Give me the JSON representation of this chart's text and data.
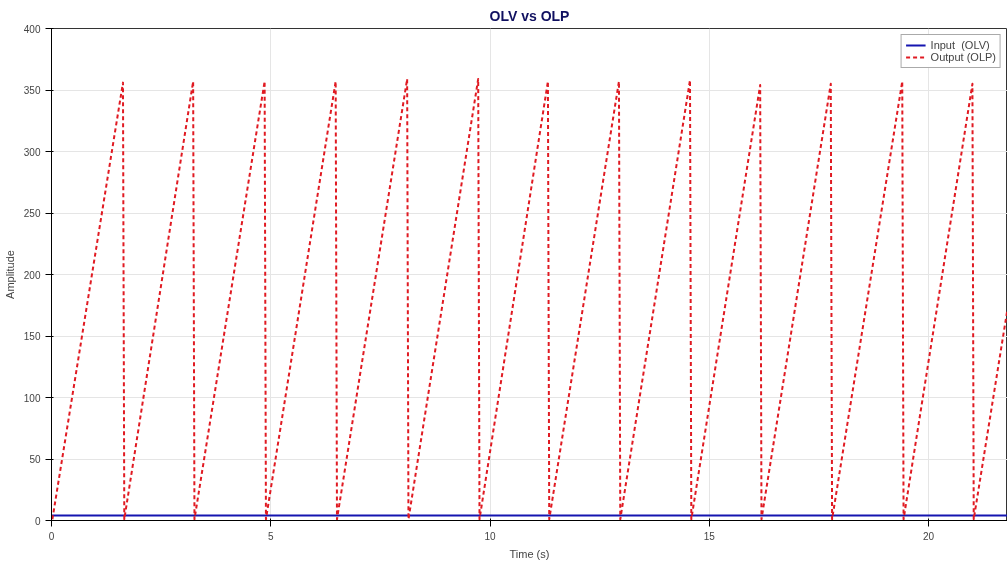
{
  "chart_data": {
    "type": "line",
    "title": "OLV vs OLP",
    "xlabel": "Time (s)",
    "ylabel": "Amplitude",
    "xlim": [
      0,
      21.8
    ],
    "ylim": [
      0,
      400
    ],
    "xticks": [
      0,
      5,
      10,
      15,
      20
    ],
    "yticks": [
      0,
      50,
      100,
      150,
      200,
      250,
      300,
      350,
      400
    ],
    "grid": true,
    "legend": "top right",
    "series": [
      {
        "name": "Input  (OLV)",
        "color": "#1515b0",
        "line_style": "solid",
        "x": [
          0,
          21.8
        ],
        "values": [
          4,
          4
        ]
      },
      {
        "name": "Output (OLP)",
        "color": "#e01a22",
        "line_style": "dashed",
        "x": [
          0.02,
          1.63,
          1.66,
          3.23,
          3.26,
          4.86,
          4.89,
          6.48,
          6.51,
          8.11,
          8.14,
          9.73,
          9.76,
          11.32,
          11.35,
          12.94,
          12.97,
          14.56,
          14.59,
          16.16,
          16.19,
          17.77,
          17.8,
          19.4,
          19.43,
          21.0,
          21.03,
          21.8
        ],
        "values": [
          1,
          356,
          1,
          357,
          1,
          357,
          1,
          357,
          1,
          359,
          1,
          359,
          1,
          357,
          1,
          357,
          1,
          358,
          1,
          354,
          1,
          355,
          1,
          357,
          1,
          355,
          1,
          172
        ]
      }
    ]
  }
}
